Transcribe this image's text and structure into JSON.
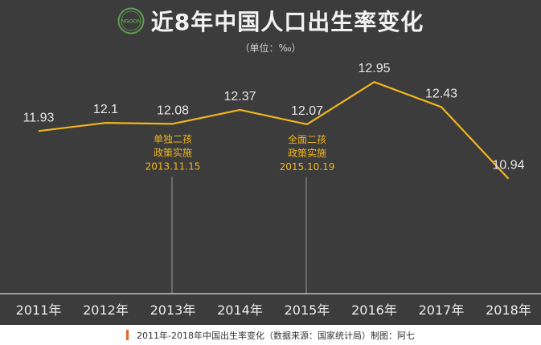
{
  "header": {
    "title": "近8年中国人口出生率变化",
    "unit": "（单位：‰）",
    "logo_text": "NGOON",
    "logo_color": "#5f9e4f"
  },
  "footer": {
    "caption": "2011年-2018年中国出生率变化（数据来源：国家统计局）制图：阿七",
    "accent_color": "#e8642a"
  },
  "chart_data": {
    "type": "line",
    "categories": [
      "2011年",
      "2012年",
      "2013年",
      "2014年",
      "2015年",
      "2016年",
      "2017年",
      "2018年"
    ],
    "series": [
      {
        "values": [
          11.93,
          12.1,
          12.08,
          12.37,
          12.07,
          12.95,
          12.43,
          10.94
        ],
        "labels": [
          "11.93",
          "12.1",
          "12.08",
          "12.37",
          "12.07",
          "12.95",
          "12.43",
          "10.94"
        ],
        "color": "#f2b51d"
      }
    ],
    "ylim": [
      8.55,
      13.32
    ],
    "grid": false,
    "annotations": [
      {
        "category_index": 2,
        "lines": [
          "单独二孩",
          "政策实施",
          "2013.11.15"
        ],
        "color": "#f2b51d"
      },
      {
        "category_index": 4,
        "lines": [
          "全面二孩",
          "政策实施",
          "2015.10.19"
        ],
        "color": "#f2b51d"
      }
    ]
  }
}
